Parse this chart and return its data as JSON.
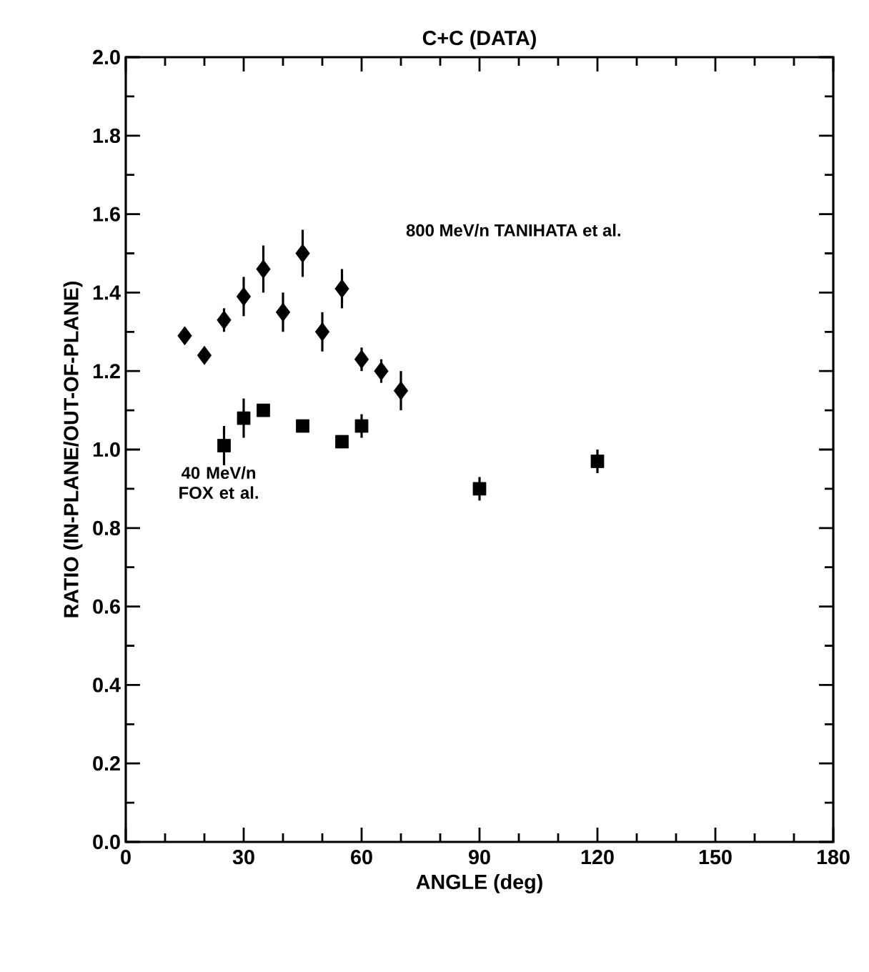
{
  "chart_data": {
    "type": "scatter",
    "title": "C+C (DATA)",
    "xlabel": "ANGLE (deg)",
    "ylabel": "RATIO (IN-PLANE/OUT-OF-PLANE)",
    "xlim": [
      0,
      180
    ],
    "ylim": [
      0,
      2
    ],
    "xticks": [
      0,
      30,
      60,
      90,
      120,
      150,
      180
    ],
    "yticks": [
      {
        "value": 0,
        "label": "0.0"
      },
      0.2,
      0.4,
      0.6,
      0.8,
      {
        "value": 1,
        "label": "1.0"
      },
      1.2,
      1.4,
      1.6,
      1.8,
      {
        "value": 2,
        "label": "2.0"
      }
    ],
    "series": [
      {
        "color": "#000000",
        "marker": "diamond",
        "x": [
          15,
          20,
          25,
          30,
          35,
          40,
          45,
          50,
          55,
          60,
          65,
          70
        ],
        "values": [
          1.29,
          1.24,
          1.33,
          1.39,
          1.46,
          1.35,
          1.5,
          1.3,
          1.41,
          1.23,
          1.2,
          1.15
        ],
        "errors": [
          null,
          null,
          0.03,
          0.05,
          0.06,
          0.05,
          0.06,
          0.05,
          0.05,
          0.03,
          0.03,
          0.05
        ]
      },
      {
        "color": "#000000",
        "marker": "square",
        "x": [
          25,
          30,
          35,
          45,
          55,
          60,
          90,
          120
        ],
        "values": [
          1.01,
          1.08,
          1.1,
          1.06,
          1.02,
          1.06,
          0.9,
          0.97
        ],
        "errors": [
          0.05,
          0.05,
          null,
          null,
          null,
          0.03,
          0.03,
          0.03
        ]
      }
    ],
    "annotations": [
      "800 MeV/n   TANIHATA et al.",
      "40 MeV/n FOX et al."
    ]
  }
}
